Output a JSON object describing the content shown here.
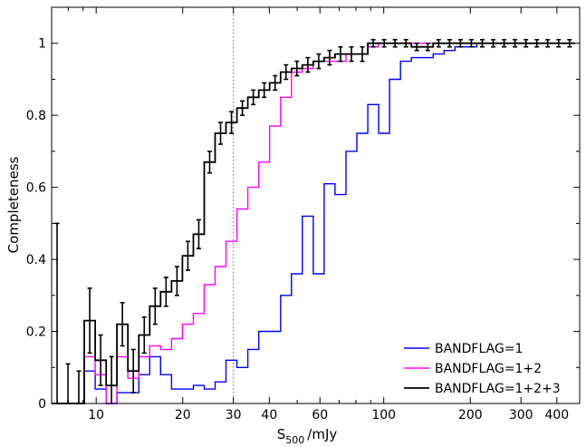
{
  "chart_data": {
    "type": "line",
    "xlabel": "S",
    "xlabel_sub": "500",
    "xlabel_unit": "/mJy",
    "ylabel": "Completeness",
    "xscale": "log",
    "xlim": [
      7,
      480
    ],
    "ylim": [
      0,
      1.1
    ],
    "x_ticks": [
      10,
      20,
      30,
      40,
      60,
      100,
      200,
      300,
      400
    ],
    "x_tick_labels": [
      "10",
      "20",
      "30",
      "40",
      "60",
      "100",
      "200",
      "300",
      "400"
    ],
    "y_ticks": [
      0,
      0.2,
      0.4,
      0.6,
      0.8,
      1
    ],
    "y_tick_labels": [
      "0",
      "0.2",
      "0.4",
      "0.6",
      "0.8",
      "1"
    ],
    "reference_line_x": 30,
    "legend_position": "bottom-right",
    "grid": false,
    "bin_edges": [
      7.0,
      7.64,
      8.33,
      9.09,
      9.92,
      10.83,
      11.81,
      12.89,
      14.07,
      15.35,
      16.75,
      18.28,
      19.95,
      21.77,
      23.75,
      25.92,
      28.28,
      30.87,
      33.68,
      36.75,
      40.11,
      43.77,
      47.76,
      52.12,
      56.87,
      62.06,
      67.72,
      73.9,
      80.64,
      88.0,
      96.03,
      104.79,
      114.35,
      124.79,
      136.17,
      148.6,
      162.15,
      176.94,
      193.09,
      210.7,
      229.92,
      250.9,
      273.79,
      298.77,
      326.02,
      355.77,
      388.23,
      423.64,
      462.3
    ],
    "series": [
      {
        "name": "BANDFLAG=1",
        "color": "#0000ff",
        "values": [
          0,
          0,
          0,
          0.09,
          0.04,
          0,
          0.03,
          0.03,
          0.08,
          0.13,
          0.08,
          0.04,
          0.04,
          0.05,
          0.04,
          0.06,
          0.12,
          0.1,
          0.15,
          0.2,
          0.2,
          0.3,
          0.36,
          0.52,
          0.36,
          0.61,
          0.58,
          0.7,
          0.75,
          0.83,
          0.75,
          0.9,
          0.95,
          0.96,
          0.96,
          0.97,
          0.98,
          0.99,
          0.99,
          1,
          1,
          1,
          1,
          1,
          1,
          1,
          1,
          1
        ]
      },
      {
        "name": "BANDFLAG=1+2",
        "color": "#ff00ff",
        "values": [
          0,
          0,
          0,
          0.13,
          0.08,
          0,
          0.13,
          0.07,
          0.13,
          0.16,
          0.15,
          0.18,
          0.22,
          0.25,
          0.33,
          0.38,
          0.45,
          0.54,
          0.6,
          0.67,
          0.77,
          0.85,
          0.92,
          0.93,
          0.95,
          0.95,
          0.95,
          0.97,
          0.97,
          0.99,
          1,
          1,
          1,
          1,
          1,
          1,
          1,
          1,
          1,
          1,
          1,
          1,
          1,
          1,
          1,
          1,
          1,
          1
        ]
      },
      {
        "name": "BANDFLAG=1+2+3",
        "color": "#000000",
        "values": [
          0,
          0,
          0,
          0.23,
          0.12,
          0.05,
          0.22,
          0.09,
          0.19,
          0.27,
          0.31,
          0.34,
          0.41,
          0.47,
          0.67,
          0.75,
          0.78,
          0.82,
          0.85,
          0.87,
          0.89,
          0.92,
          0.93,
          0.94,
          0.95,
          0.96,
          0.97,
          0.97,
          0.97,
          1,
          1,
          1,
          1,
          0.99,
          0.99,
          1,
          1,
          1,
          1,
          1,
          1,
          1,
          1,
          1,
          1,
          1,
          1,
          1
        ],
        "errors": [
          0.5,
          0.11,
          0.09,
          0.09,
          0.07,
          0.08,
          0.06,
          0.06,
          0.05,
          0.05,
          0.04,
          0.04,
          0.04,
          0.04,
          0.03,
          0.03,
          0.03,
          0.02,
          0.02,
          0.02,
          0.02,
          0.02,
          0.02,
          0.02,
          0.02,
          0.02,
          0.02,
          0.02,
          0.02,
          0.01,
          0.01,
          0.01,
          0.01,
          0.01,
          0.01,
          0.01,
          0.01,
          0.01,
          0.01,
          0.01,
          0.01,
          0.01,
          0.01,
          0.01,
          0.01,
          0.01,
          0.01,
          0.01
        ]
      }
    ]
  }
}
